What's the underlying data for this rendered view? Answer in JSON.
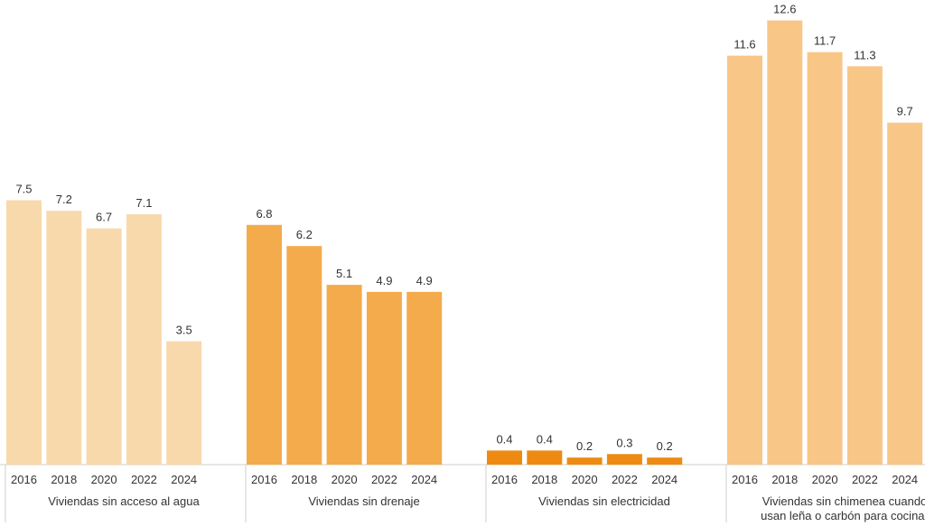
{
  "chart_data": {
    "type": "bar",
    "ylim": [
      0,
      13
    ],
    "grid": false,
    "groups": [
      {
        "label_lines": [
          "Viviendas sin acceso al agua"
        ],
        "color": "#F8D9AC",
        "categories": [
          "2016",
          "2018",
          "2020",
          "2022",
          "2024"
        ],
        "values": [
          7.5,
          7.2,
          6.7,
          7.1,
          3.5
        ],
        "value_labels": [
          "7.5",
          "7.2",
          "6.7",
          "7.1",
          "3.5"
        ]
      },
      {
        "label_lines": [
          "Viviendas sin drenaje"
        ],
        "color": "#F3AB4C",
        "categories": [
          "2016",
          "2018",
          "2020",
          "2022",
          "2024"
        ],
        "values": [
          6.8,
          6.2,
          5.1,
          4.9,
          4.9
        ],
        "value_labels": [
          "6.8",
          "6.2",
          "5.1",
          "4.9",
          "4.9"
        ]
      },
      {
        "label_lines": [
          "Viviendas sin electricidad"
        ],
        "color": "#EE8A12",
        "categories": [
          "2016",
          "2018",
          "2020",
          "2022",
          "2024"
        ],
        "values": [
          0.4,
          0.4,
          0.2,
          0.3,
          0.2
        ],
        "value_labels": [
          "0.4",
          "0.4",
          "0.2",
          "0.3",
          "0.2"
        ]
      },
      {
        "label_lines": [
          "Viviendas sin chimenea cuando",
          "usan leña o carbón para cocinar"
        ],
        "color": "#F8C687",
        "categories": [
          "2016",
          "2018",
          "2020",
          "2022",
          "2024"
        ],
        "values": [
          11.6,
          12.6,
          11.7,
          11.3,
          9.7
        ],
        "value_labels": [
          "11.6",
          "12.6",
          "11.7",
          "11.3",
          "9.7"
        ]
      }
    ]
  }
}
